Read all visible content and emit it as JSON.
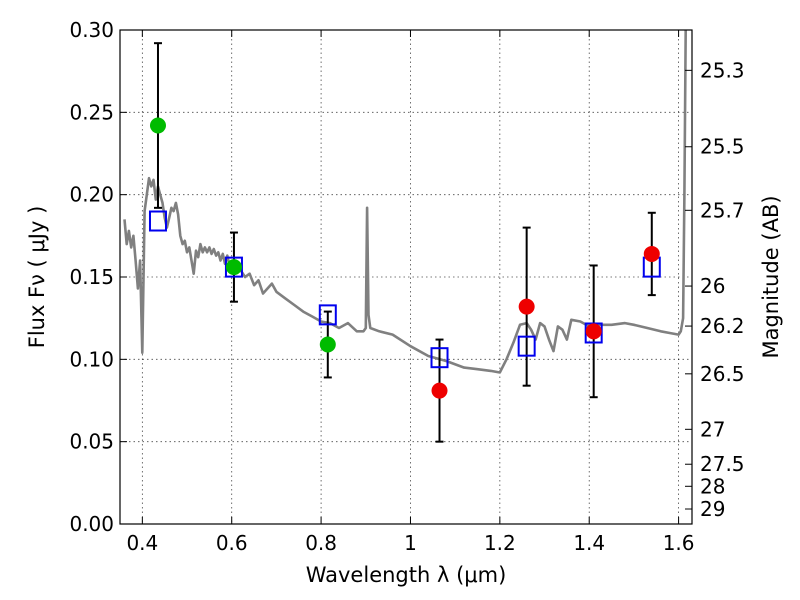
{
  "chart_data": {
    "type": "scatter",
    "xlabel": "Wavelength  λ (μm)",
    "ylabel": "Flux  Fν  ( μJy )",
    "ylabel_right": "Magnitude (AB)",
    "xlim": [
      0.35,
      1.63
    ],
    "ylim": [
      0.0,
      0.3
    ],
    "grid": true,
    "x_ticks": [
      0.4,
      0.6,
      0.8,
      1.0,
      1.2,
      1.4,
      1.6
    ],
    "x_tick_labels": [
      "0.4",
      "0.6",
      "0.8",
      "1",
      "1.2",
      "1.4",
      "1.6"
    ],
    "y_ticks": [
      0.0,
      0.05,
      0.1,
      0.15,
      0.2,
      0.25,
      0.3
    ],
    "y_tick_labels": [
      "0.00",
      "0.05",
      "0.10",
      "0.15",
      "0.20",
      "0.25",
      "0.30"
    ],
    "right_ticks": [
      {
        "label": "25.3",
        "flux": 0.2755
      },
      {
        "label": "25.5",
        "flux": 0.2291
      },
      {
        "label": "25.7",
        "flux": 0.1905
      },
      {
        "label": "26",
        "flux": 0.1445
      },
      {
        "label": "26.2",
        "flux": 0.1202
      },
      {
        "label": "26.5",
        "flux": 0.0912
      },
      {
        "label": "27",
        "flux": 0.0575
      },
      {
        "label": "27.5",
        "flux": 0.0363
      },
      {
        "label": "28",
        "flux": 0.0229
      },
      {
        "label": "29",
        "flux": 0.0091
      }
    ],
    "series": [
      {
        "color": "#808080",
        "kind": "line",
        "x": [
          0.36,
          0.365,
          0.37,
          0.375,
          0.38,
          0.385,
          0.39,
          0.395,
          0.4,
          0.405,
          0.41,
          0.415,
          0.42,
          0.425,
          0.43,
          0.435,
          0.44,
          0.445,
          0.45,
          0.455,
          0.46,
          0.465,
          0.47,
          0.475,
          0.48,
          0.485,
          0.49,
          0.495,
          0.5,
          0.505,
          0.51,
          0.515,
          0.52,
          0.525,
          0.53,
          0.535,
          0.54,
          0.545,
          0.55,
          0.555,
          0.56,
          0.565,
          0.57,
          0.575,
          0.58,
          0.585,
          0.59,
          0.595,
          0.6,
          0.61,
          0.62,
          0.63,
          0.64,
          0.65,
          0.66,
          0.67,
          0.68,
          0.69,
          0.7,
          0.72,
          0.74,
          0.76,
          0.78,
          0.8,
          0.82,
          0.84,
          0.86,
          0.88,
          0.895,
          0.9,
          0.903,
          0.906,
          0.91,
          0.93,
          0.96,
          1.0,
          1.04,
          1.08,
          1.12,
          1.15,
          1.18,
          1.2,
          1.215,
          1.23,
          1.245,
          1.26,
          1.27,
          1.28,
          1.29,
          1.3,
          1.31,
          1.32,
          1.33,
          1.34,
          1.35,
          1.36,
          1.38,
          1.4,
          1.42,
          1.45,
          1.48,
          1.5,
          1.53,
          1.56,
          1.58,
          1.6,
          1.605,
          1.61,
          1.613,
          1.616
        ],
        "y": [
          0.185,
          0.17,
          0.178,
          0.168,
          0.175,
          0.16,
          0.143,
          0.16,
          0.104,
          0.19,
          0.2,
          0.21,
          0.205,
          0.209,
          0.197,
          0.205,
          0.2,
          0.195,
          0.186,
          0.18,
          0.186,
          0.192,
          0.19,
          0.195,
          0.188,
          0.175,
          0.17,
          0.172,
          0.165,
          0.168,
          0.16,
          0.152,
          0.166,
          0.162,
          0.17,
          0.165,
          0.168,
          0.165,
          0.168,
          0.164,
          0.167,
          0.163,
          0.165,
          0.16,
          0.164,
          0.158,
          0.163,
          0.157,
          0.158,
          0.157,
          0.154,
          0.15,
          0.152,
          0.145,
          0.148,
          0.14,
          0.143,
          0.146,
          0.141,
          0.137,
          0.133,
          0.129,
          0.126,
          0.123,
          0.122,
          0.119,
          0.122,
          0.117,
          0.117,
          0.119,
          0.192,
          0.127,
          0.119,
          0.117,
          0.115,
          0.108,
          0.102,
          0.099,
          0.095,
          0.094,
          0.093,
          0.092,
          0.1,
          0.11,
          0.121,
          0.122,
          0.118,
          0.112,
          0.122,
          0.12,
          0.112,
          0.105,
          0.12,
          0.118,
          0.112,
          0.124,
          0.123,
          0.12,
          0.121,
          0.121,
          0.122,
          0.121,
          0.119,
          0.117,
          0.116,
          0.115,
          0.117,
          0.125,
          0.2,
          0.3
        ]
      },
      {
        "color": "#0000ee",
        "kind": "square",
        "x": [
          0.435,
          0.605,
          0.815,
          1.065,
          1.26,
          1.41,
          1.54
        ],
        "y": [
          0.184,
          0.156,
          0.127,
          0.101,
          0.108,
          0.116,
          0.156
        ]
      },
      {
        "color": "#00bb00",
        "kind": "circle",
        "x": [
          0.435,
          0.605,
          0.815
        ],
        "y": [
          0.242,
          0.156,
          0.109
        ],
        "err": [
          0.05,
          0.021,
          0.02
        ]
      },
      {
        "color": "#ee0000",
        "kind": "circle",
        "x": [
          1.065,
          1.26,
          1.41,
          1.54
        ],
        "y": [
          0.081,
          0.132,
          0.117,
          0.164
        ],
        "err": [
          0.031,
          0.048,
          0.04,
          0.025
        ]
      }
    ]
  }
}
